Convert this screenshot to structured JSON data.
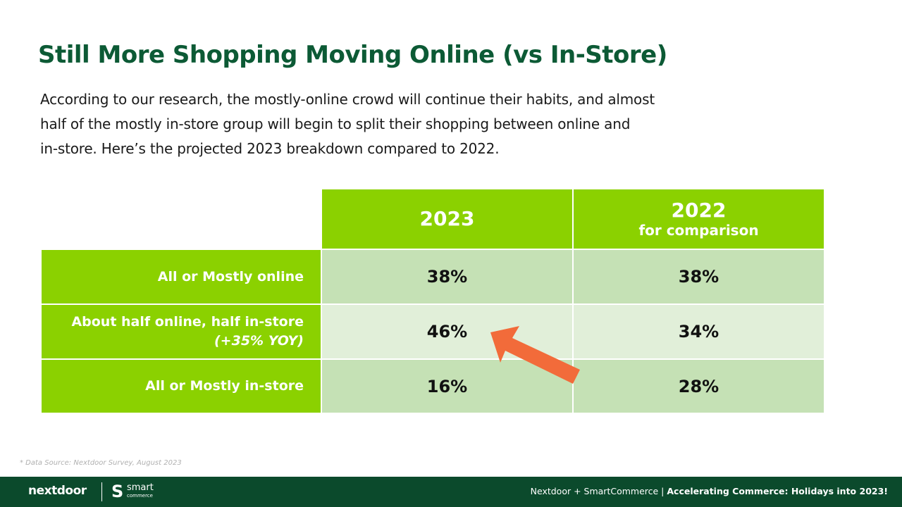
{
  "slide": {
    "title": "Still More Shopping Moving Online (vs In-Store)",
    "intro_lines": [
      "According to our research, the mostly-online crowd will continue their habits, and almost",
      "half of the mostly in-store group will begin to split their shopping between online and",
      "in-store. Here’s the projected 2023 breakdown compared to 2022."
    ]
  },
  "table": {
    "columns": [
      {
        "year": "2023",
        "subtitle": ""
      },
      {
        "year": "2022",
        "subtitle": "for comparison"
      }
    ],
    "rows": [
      {
        "label": "All or Mostly online",
        "note": "",
        "values": [
          "38%",
          "38%"
        ]
      },
      {
        "label": "About half online, half in-store",
        "note": "(+35% YOY)",
        "values": [
          "46%",
          "34%"
        ]
      },
      {
        "label": "All or Mostly in-store",
        "note": "",
        "values": [
          "16%",
          "28%"
        ]
      }
    ]
  },
  "source_note": "* Data Source: Nextdoor Survey, August 2023",
  "footer": {
    "logo_nextdoor": "nextdoor",
    "logo_smart_mark": "S",
    "logo_smart_word": "smart",
    "logo_smart_subword": "commerce",
    "partners": "Nextdoor + SmartCommerce | ",
    "tagline": "Accelerating Commerce: Holidays into 2023!"
  },
  "colors": {
    "title_green": "#0c5a35",
    "header_green": "#8bd100",
    "cell_dark": "#c5e1b5",
    "cell_light": "#e1efd9",
    "arrow_orange": "#f26b3a",
    "footer_bg": "#0b4a2c"
  },
  "icons": {
    "arrow": "orange-arrow-pointing-up-left"
  }
}
